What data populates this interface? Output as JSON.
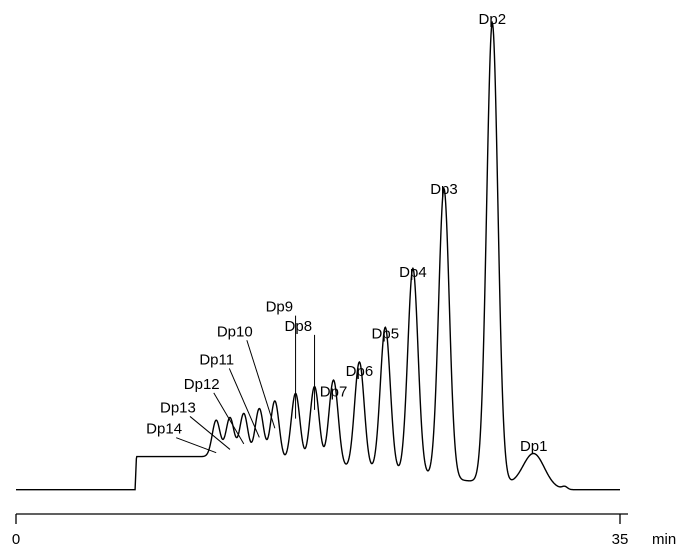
{
  "chart_data": {
    "type": "line",
    "title": "",
    "xlabel": "min",
    "ylabel": "",
    "xlim": [
      0,
      38
    ],
    "ylim": [
      0,
      100
    ],
    "x_ticks": [
      {
        "value": 0,
        "label": "0"
      },
      {
        "value": 35,
        "label": "35"
      }
    ],
    "series": [
      {
        "baseline": {
          "start": 0,
          "end": 35,
          "level_before": 0.5,
          "level_after": 0.5
        },
        "plateau": {
          "start": 6.9,
          "end": 12.0,
          "level": 7.2
        },
        "peaks": [
          {
            "label": "Dp14",
            "rt": 11.6,
            "height": 7.9
          },
          {
            "label": "Dp13",
            "rt": 12.4,
            "height": 8.6
          },
          {
            "label": "Dp12",
            "rt": 13.2,
            "height": 9.8
          },
          {
            "label": "Dp11",
            "rt": 14.1,
            "height": 11.2
          },
          {
            "label": "Dp10",
            "rt": 15.0,
            "height": 13.2
          },
          {
            "label": "Dp9",
            "rt": 16.2,
            "height": 15.3
          },
          {
            "label": "Dp8",
            "rt": 17.3,
            "height": 17.2
          },
          {
            "label": "Dp7",
            "rt": 18.4,
            "height": 19.0
          },
          {
            "label": "Dp6",
            "rt": 19.9,
            "height": 23.5
          },
          {
            "label": "Dp5",
            "rt": 21.4,
            "height": 31.6
          },
          {
            "label": "Dp4",
            "rt": 23.0,
            "height": 45.0
          },
          {
            "label": "Dp3",
            "rt": 24.8,
            "height": 63.0
          },
          {
            "label": "Dp2",
            "rt": 27.6,
            "height": 100.0
          },
          {
            "label": "Dp1",
            "rt": 30.0,
            "height": 7.2
          }
        ]
      }
    ]
  }
}
